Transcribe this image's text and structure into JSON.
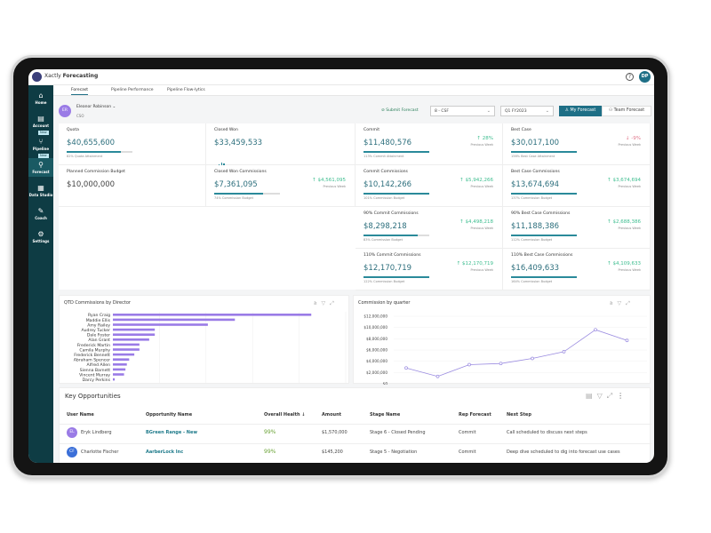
{
  "app": {
    "title_prefix": "Xactly",
    "title": "Forecasting",
    "user_initials": "DP",
    "help": "?"
  },
  "sidebar": {
    "items": [
      {
        "label": "Home",
        "icon": "home-icon",
        "glyph": "⌂"
      },
      {
        "label": "Account",
        "icon": "building-icon",
        "glyph": "▤"
      },
      {
        "label": "Pipeline",
        "icon": "pipeline-icon",
        "glyph": "⑂",
        "badge": "New"
      },
      {
        "label": "Forecast",
        "icon": "forecast-icon",
        "glyph": "⚲",
        "badge": "New",
        "active": true
      },
      {
        "label": "Data Studio",
        "icon": "data-studio-icon",
        "glyph": "▦"
      },
      {
        "label": "Coach",
        "icon": "coach-icon",
        "glyph": "✎"
      },
      {
        "label": "Settings",
        "icon": "gear-icon",
        "glyph": "⚙"
      }
    ]
  },
  "tabs": [
    {
      "label": "Forecast",
      "active": true
    },
    {
      "label": "Pipeline Performance"
    },
    {
      "label": "Pipeline Flow-lytics"
    }
  ],
  "user": {
    "initials": "ER",
    "name": "Eleanor Robinson",
    "role": "CSO"
  },
  "controls": {
    "submit": "Submit Forecast",
    "category": "8 - CSF",
    "period": "Q1 FY2023",
    "my_forecast": "My Forecast",
    "team_forecast": "Team Forecast"
  },
  "colors": {
    "accent": "#1e6f86",
    "sidebar": "#0e3c44",
    "up": "#3dbd8f",
    "down": "#e0768a",
    "bars": "#9a7be6"
  },
  "cards": [
    {
      "title": "Quota",
      "value": "$40,655,600",
      "progress": 82,
      "sub": "82% Quota Attainment"
    },
    {
      "title": "Closed Won",
      "value": "$33,459,533",
      "mini_chart": true
    },
    {
      "title": "Commit",
      "value": "$11,480,576",
      "progress": 100,
      "sub": "113% Commit Attainment",
      "delta": "↑ 28%",
      "dir": "up",
      "delta_label": "Previous Week"
    },
    {
      "title": "Best Case",
      "value": "$30,017,100",
      "progress": 100,
      "sub": "156% Best Case Attainment",
      "delta": "↓ -9%",
      "dir": "down",
      "delta_label": "Previous Week"
    },
    {
      "title": "Planned Commission Budget",
      "value": "$10,000,000",
      "plain": true
    },
    {
      "title": "Closed Won Commissions",
      "value": "$7,361,095",
      "progress": 74,
      "sub": "74% Commission Budget",
      "delta": "↑ $4,561,095",
      "dir": "up",
      "delta_label": "Previous Week"
    },
    {
      "title": "Commit Commissions",
      "value": "$10,142,266",
      "progress": 100,
      "sub": "101% Commission Budget",
      "delta": "↑ $5,942,266",
      "dir": "up",
      "delta_label": "Previous Week"
    },
    {
      "title": "Best Case Commissions",
      "value": "$13,674,694",
      "progress": 100,
      "sub": "137% Commission Budget",
      "delta": "↑ $3,674,694",
      "dir": "up",
      "delta_label": "Previous Week"
    },
    {
      "title": "90% Commit Commissions",
      "value": "$8,298,218",
      "progress": 83,
      "sub": "83% Commission Budget",
      "delta": "↑ $4,498,218",
      "dir": "up",
      "delta_label": "Previous Week"
    },
    {
      "title": "90% Best Case Commissions",
      "value": "$11,188,386",
      "progress": 100,
      "sub": "112% Commission Budget",
      "delta": "↑ $2,688,386",
      "dir": "up",
      "delta_label": "Previous Week"
    },
    {
      "title": "110% Commit Commissions",
      "value": "$12,170,719",
      "progress": 100,
      "sub": "122% Commission Budget",
      "delta": "↑ $12,170,719",
      "dir": "up",
      "delta_label": "Previous Week"
    },
    {
      "title": "110% Best Case Commissions",
      "value": "$16,409,633",
      "progress": 100,
      "sub": "164% Commission Budget",
      "delta": "↑ $4,109,633",
      "dir": "up",
      "delta_label": "Previous Week"
    }
  ],
  "chart_data": [
    {
      "type": "bar",
      "orientation": "horizontal",
      "title": "QTD Commissions by Director",
      "categories": [
        "Ryan Craig",
        "Maddie Ellis",
        "Amy Railey",
        "Audrey Tucker",
        "Dale Foster",
        "Alan Grant",
        "Frederick Martin",
        "Camila Murphy",
        "Frederick Bennett",
        "Abraham Spencer",
        "Alfred Allen",
        "Sienna Barnett",
        "Vincent Murray",
        "Darcy Perkins"
      ],
      "values": [
        4.26,
        2.62,
        2.04,
        0.9,
        0.9,
        0.78,
        0.57,
        0.57,
        0.46,
        0.35,
        0.3,
        0.27,
        0.24,
        0.04
      ],
      "xlim": [
        0,
        5
      ],
      "grid": true,
      "color": "#9a7be6"
    },
    {
      "type": "line",
      "title": "Commission by quarter",
      "y_ticks": [
        "$12,000,000",
        "$10,000,000",
        "$8,000,000",
        "$6,000,000",
        "$4,000,000",
        "$2,000,000",
        "$0"
      ],
      "values": [
        2800000,
        1300000,
        3400000,
        3600000,
        4500000,
        5700000,
        9600000,
        7700000
      ],
      "ylim": [
        0,
        12000000
      ],
      "grid": true,
      "color": "#9a8be0"
    }
  ],
  "key_opportunities": {
    "title": "Key Opportunities",
    "columns": [
      "User Name",
      "Opportunity Name",
      "Overall Health ↓",
      "Amount",
      "Stage Name",
      "Rep Forecast",
      "Next Step"
    ],
    "rows": [
      {
        "initials": "EL",
        "avatar_color": "#9a7be6",
        "user": "Eryk Lindberg",
        "opportunity": "BGreen Range - New",
        "health": "99%",
        "amount": "$1,570,000",
        "stage": "Stage 6 - Closed Pending",
        "forecast": "Commit",
        "next": "Call scheduled to discuss next steps"
      },
      {
        "initials": "CF",
        "avatar_color": "#3b6fd8",
        "user": "Charlotte Fischer",
        "opportunity": "AarberLock Inc",
        "health": "99%",
        "amount": "$145,200",
        "stage": "Stage 5 - Negotiation",
        "forecast": "Commit",
        "next": "Deep dive scheduled to dig into forecast use cases"
      }
    ]
  }
}
